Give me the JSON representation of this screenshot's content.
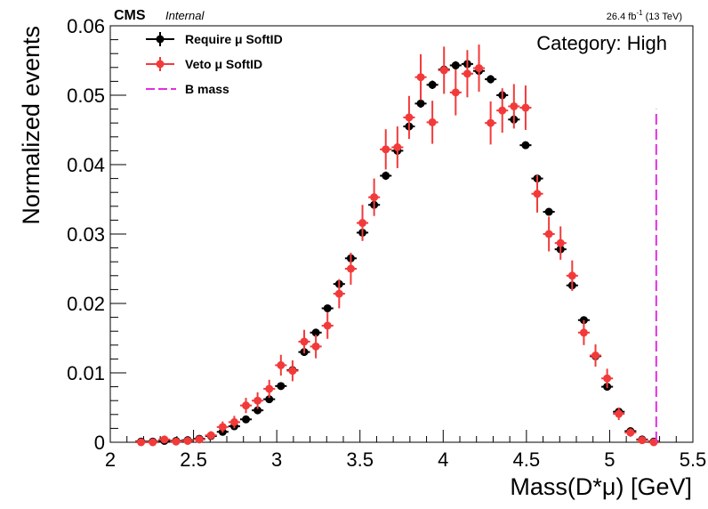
{
  "header": {
    "cms": "CMS",
    "internal": "Internal",
    "lumi_value": "26.4 fb",
    "lumi_exp": "-1",
    "lumi_energy": " (13 TeV)",
    "category": "Category: High"
  },
  "legend": {
    "require": "Require  μ SoftID",
    "veto": "Veto  μ SoftID",
    "bmass": "B mass"
  },
  "colors": {
    "require": "#000000",
    "veto": "#f23a3a",
    "bmass": "#e030e0"
  },
  "chart_data": {
    "type": "scatter",
    "title": "",
    "xlabel": "Mass(D*μ) [GeV]",
    "ylabel": "Normalized events",
    "xlim": [
      2,
      5.5
    ],
    "ylim": [
      0,
      0.06
    ],
    "xticks": [
      "2",
      "2.5",
      "3",
      "3.5",
      "4",
      "4.5",
      "5",
      "5.5"
    ],
    "yticks": [
      "0",
      "0.01",
      "0.02",
      "0.03",
      "0.04",
      "0.05",
      "0.06"
    ],
    "bin_width": 0.07,
    "x": [
      2.185,
      2.255,
      2.325,
      2.395,
      2.465,
      2.535,
      2.605,
      2.675,
      2.745,
      2.815,
      2.885,
      2.955,
      3.025,
      3.095,
      3.165,
      3.235,
      3.305,
      3.375,
      3.445,
      3.515,
      3.585,
      3.655,
      3.725,
      3.795,
      3.865,
      3.935,
      4.005,
      4.075,
      4.145,
      4.215,
      4.285,
      4.355,
      4.425,
      4.495,
      4.565,
      4.635,
      4.705,
      4.775,
      4.845,
      4.915,
      4.985,
      5.055,
      5.125,
      5.195,
      5.265
    ],
    "series": [
      {
        "name": "Require  μ SoftID",
        "values": [
          0.0001,
          0.0001,
          0.0002,
          0.0002,
          0.0003,
          0.0005,
          0.0009,
          0.0015,
          0.0023,
          0.0033,
          0.0046,
          0.0062,
          0.0081,
          0.0104,
          0.013,
          0.0158,
          0.0193,
          0.0228,
          0.0265,
          0.0302,
          0.0342,
          0.0384,
          0.042,
          0.0455,
          0.0488,
          0.0515,
          0.0537,
          0.0543,
          0.0545,
          0.0535,
          0.0523,
          0.05,
          0.0465,
          0.0428,
          0.038,
          0.0332,
          0.0278,
          0.0226,
          0.0176,
          0.0124,
          0.008,
          0.0044,
          0.0016,
          0.0004,
          0.0001
        ],
        "errors": [
          0.0001,
          0.0001,
          0.0001,
          0.0001,
          0.0001,
          0.0001,
          0.0001,
          0.0002,
          0.0002,
          0.0002,
          0.0003,
          0.0003,
          0.0003,
          0.0004,
          0.0004,
          0.0004,
          0.0005,
          0.0005,
          0.0005,
          0.0005,
          0.0005,
          0.0006,
          0.0006,
          0.0006,
          0.0006,
          0.0006,
          0.0006,
          0.0006,
          0.0006,
          0.0006,
          0.0006,
          0.0006,
          0.0006,
          0.0005,
          0.0005,
          0.0005,
          0.0005,
          0.0004,
          0.0004,
          0.0004,
          0.0003,
          0.0003,
          0.0002,
          0.0001,
          0.0001
        ]
      },
      {
        "name": "Veto  μ SoftID",
        "values": [
          0.0,
          0.0,
          0.0004,
          0.0001,
          0.0002,
          0.0004,
          0.001,
          0.0022,
          0.0029,
          0.0053,
          0.006,
          0.0077,
          0.0111,
          0.0103,
          0.0145,
          0.0138,
          0.0168,
          0.0214,
          0.025,
          0.0316,
          0.0353,
          0.0422,
          0.0425,
          0.0468,
          0.0526,
          0.0461,
          0.0536,
          0.0504,
          0.0531,
          0.0539,
          0.046,
          0.0478,
          0.0484,
          0.0482,
          0.0358,
          0.03,
          0.0287,
          0.024,
          0.0158,
          0.0125,
          0.0092,
          0.0041,
          0.0014,
          0.0003,
          0.0
        ],
        "errors": [
          0.0003,
          0.0003,
          0.0003,
          0.0003,
          0.0004,
          0.0005,
          0.0006,
          0.0008,
          0.0009,
          0.0011,
          0.0012,
          0.0013,
          0.0015,
          0.0015,
          0.0017,
          0.0017,
          0.0019,
          0.0021,
          0.0023,
          0.0026,
          0.0027,
          0.0029,
          0.003,
          0.0031,
          0.0033,
          0.0031,
          0.0034,
          0.0033,
          0.0034,
          0.0034,
          0.0031,
          0.0032,
          0.0032,
          0.0032,
          0.0027,
          0.0025,
          0.0024,
          0.0022,
          0.0018,
          0.0016,
          0.0014,
          0.0009,
          0.0006,
          0.0003,
          0.0003
        ]
      }
    ],
    "bmass_line": {
      "x": 5.28,
      "y_top": 0.048
    },
    "legend_position": "top-left",
    "grid": false
  }
}
